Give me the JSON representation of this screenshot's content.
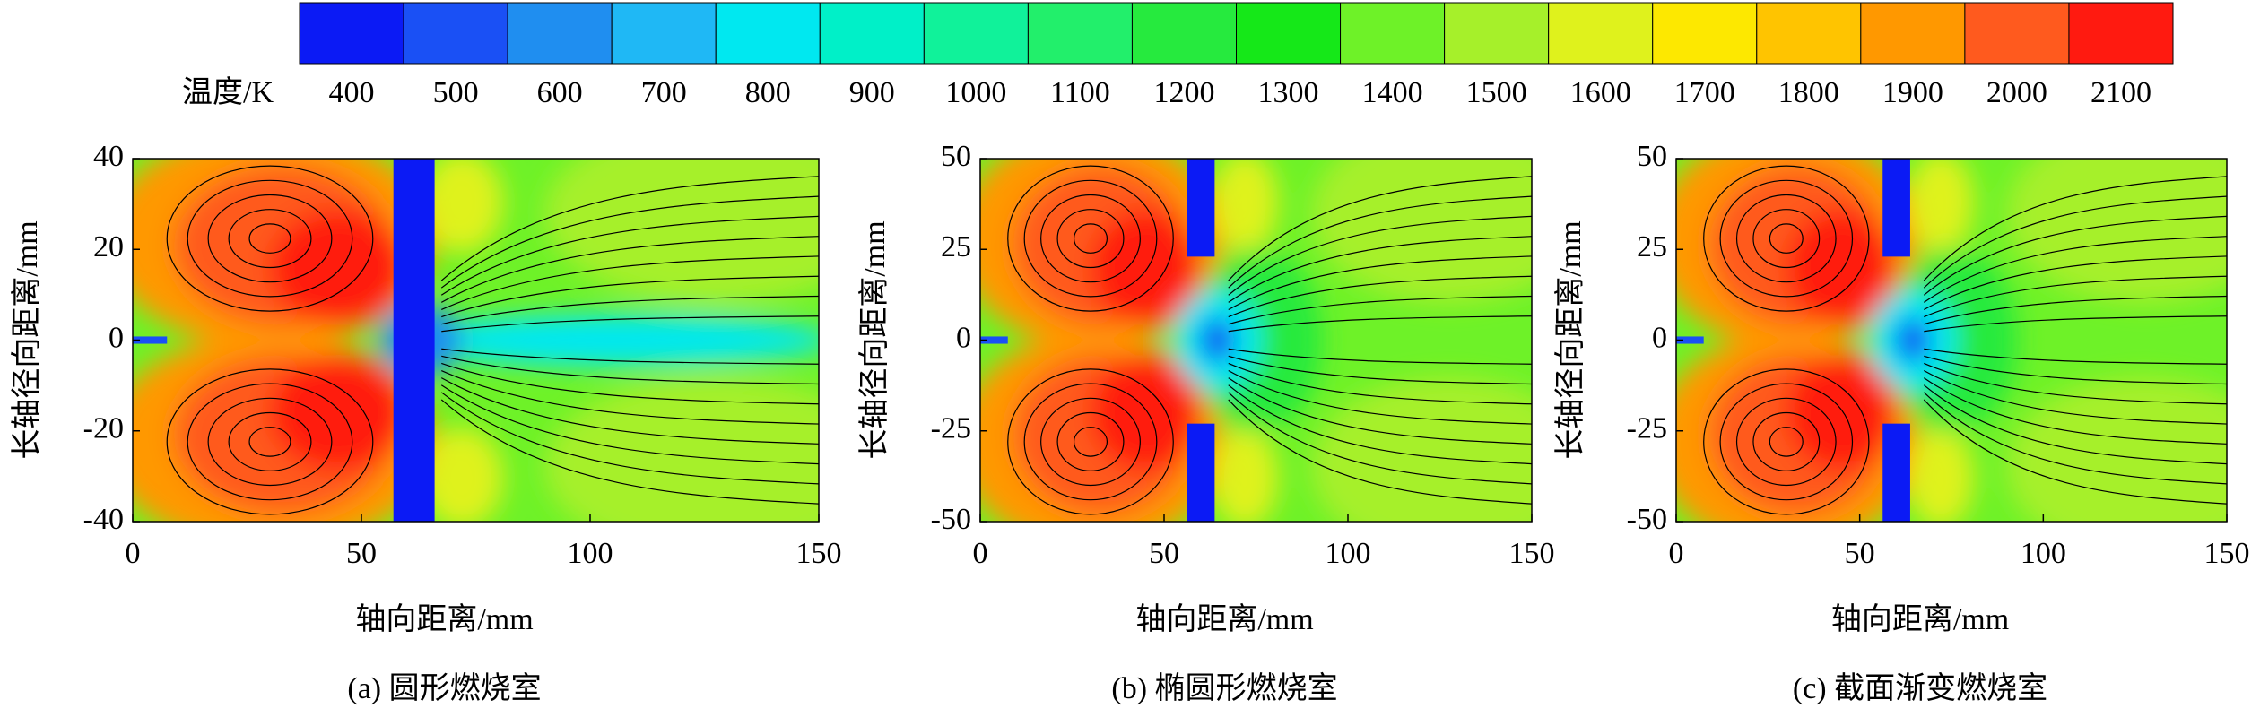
{
  "colorbar": {
    "label": "温度/K",
    "ticks": [
      400,
      500,
      600,
      700,
      800,
      900,
      1000,
      1100,
      1200,
      1300,
      1400,
      1500,
      1600,
      1700,
      1800,
      1900,
      2000,
      2100
    ],
    "colors": [
      "#0b1af5",
      "#1a50f5",
      "#1f8ef0",
      "#1fb8f5",
      "#00e8f0",
      "#00f0c8",
      "#10f29a",
      "#22ef6b",
      "#26ea3e",
      "#15e818",
      "#6ef228",
      "#a6f02a",
      "#dff21c",
      "#fde800",
      "#ffc400",
      "#ff9800",
      "#ff5a1e",
      "#ff1a10"
    ]
  },
  "chart_data": [
    {
      "type": "contour",
      "title": "(a) 圆形燃烧室",
      "xlabel": "轴向距离/mm",
      "ylabel": "长轴径向距离/mm",
      "xlim": [
        0,
        150
      ],
      "xticks": [
        0,
        50,
        100,
        150
      ],
      "ylim": [
        -40,
        40
      ],
      "yticks": [
        -40,
        -20,
        0,
        20,
        40
      ]
    },
    {
      "type": "contour",
      "title": "(b) 椭圆形燃烧室",
      "xlabel": "轴向距离/mm",
      "ylabel": "长轴径向距离/mm",
      "xlim": [
        0,
        150
      ],
      "xticks": [
        0,
        50,
        100,
        150
      ],
      "ylim": [
        -50,
        50
      ],
      "yticks": [
        -50,
        -25,
        0,
        25,
        50
      ]
    },
    {
      "type": "contour",
      "title": "(c) 截面渐变燃烧室",
      "xlabel": "轴向距离/mm",
      "ylabel": "长轴径向距离/mm",
      "xlim": [
        0,
        150
      ],
      "xticks": [
        0,
        50,
        100,
        150
      ],
      "ylim": [
        -50,
        50
      ],
      "yticks": [
        -50,
        -25,
        0,
        25,
        50
      ]
    }
  ]
}
